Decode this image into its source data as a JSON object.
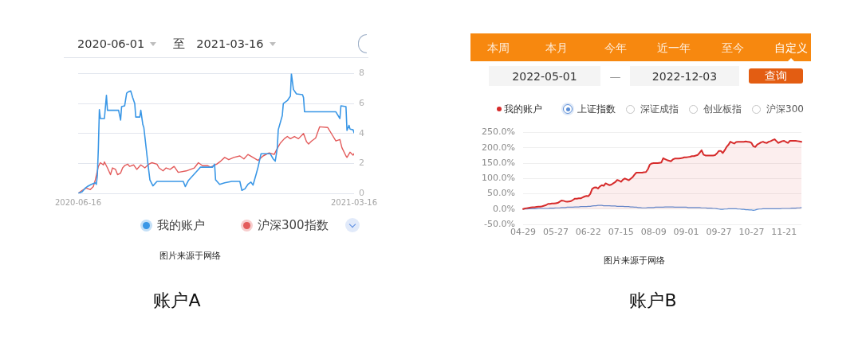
{
  "chart_data": [
    {
      "type": "line",
      "title": "账户A",
      "annotations": [
        "2020-06-01",
        "至",
        "2021-03-16",
        "图片来源于网络"
      ],
      "xlim": [
        "2020-06-16",
        "2021-03-16"
      ],
      "xticks": [
        "2020-06-16",
        "2021-03-16"
      ],
      "ylim": [
        0,
        8
      ],
      "yticks": [
        0,
        2,
        4,
        6,
        8
      ],
      "grid": "y",
      "legend": "bottom",
      "series": [
        {
          "name": "我的账户",
          "color": "#3a97e6",
          "x": [
            "2020-06-16",
            "2020-06-20",
            "2020-06-23",
            "2020-06-25",
            "2020-06-29",
            "2020-07-03",
            "2020-07-04",
            "2020-07-05",
            "2020-07-06",
            "2020-07-07",
            "2020-07-08",
            "2020-07-12",
            "2020-07-14",
            "2020-07-15",
            "2020-07-26",
            "2020-07-28",
            "2020-07-29",
            "2020-08-01",
            "2020-08-03",
            "2020-08-05",
            "2020-08-07",
            "2020-08-09",
            "2020-08-11",
            "2020-08-12",
            "2020-08-16",
            "2020-08-17",
            "2020-08-19",
            "2020-08-20",
            "2020-08-24",
            "2020-08-26",
            "2020-08-29",
            "2020-09-02",
            "2020-09-28",
            "2020-09-30",
            "2020-10-03",
            "2020-10-13",
            "2020-10-15",
            "2020-10-27",
            "2020-10-29",
            "2020-10-30",
            "2020-11-03",
            "2020-11-08",
            "2020-11-15",
            "2020-11-23",
            "2020-11-25",
            "2020-11-28",
            "2020-12-01",
            "2020-12-04",
            "2020-12-06",
            "2020-12-09",
            "2020-12-11",
            "2020-12-14",
            "2020-12-23",
            "2020-12-26",
            "2020-12-28",
            "2020-12-30",
            "2020-12-31",
            "2021-01-04",
            "2021-01-05",
            "2021-01-09",
            "2021-01-12",
            "2021-01-13",
            "2021-01-15",
            "2021-01-18",
            "2021-01-24",
            "2021-01-25",
            "2021-01-26",
            "2021-02-26",
            "2021-03-02",
            "2021-03-03",
            "2021-03-08",
            "2021-03-09",
            "2021-03-11",
            "2021-03-12",
            "2021-03-15",
            "2021-03-16"
          ],
          "values": [
            0,
            0.1,
            0.35,
            0.45,
            0.6,
            0.7,
            0.6,
            1.2,
            3.0,
            5.6,
            5.0,
            5.0,
            6.55,
            5.55,
            5.55,
            4.9,
            5.8,
            5.85,
            6.7,
            6.8,
            6.85,
            6.4,
            6.0,
            5.1,
            5.1,
            5.55,
            4.6,
            4.4,
            2.0,
            0.9,
            0.5,
            0.8,
            0.8,
            0.45,
            0.85,
            1.6,
            1.75,
            1.75,
            1.95,
            0.9,
            0.6,
            0.7,
            0.8,
            0.8,
            0.2,
            0.3,
            0.6,
            0.75,
            0.55,
            1.25,
            1.75,
            2.65,
            2.65,
            2.3,
            2.15,
            3.0,
            4.25,
            5.2,
            6.0,
            6.2,
            6.5,
            8.0,
            6.95,
            6.65,
            6.6,
            6.4,
            5.45,
            5.45,
            5.0,
            5.85,
            5.8,
            4.2,
            4.55,
            4.3,
            4.25,
            4.05
          ]
        },
        {
          "name": "沪深300指数",
          "color": "#e35b5b",
          "x": [
            "2020-06-16",
            "2020-06-20",
            "2020-06-24",
            "2020-06-28",
            "2020-07-01",
            "2020-07-03",
            "2020-07-06",
            "2020-07-08",
            "2020-07-11",
            "2020-07-12",
            "2020-07-15",
            "2020-07-18",
            "2020-07-20",
            "2020-07-23",
            "2020-07-25",
            "2020-07-28",
            "2020-07-30",
            "2020-08-01",
            "2020-08-04",
            "2020-08-06",
            "2020-08-10",
            "2020-08-13",
            "2020-08-17",
            "2020-08-21",
            "2020-08-25",
            "2020-08-28",
            "2020-09-02",
            "2020-09-04",
            "2020-09-08",
            "2020-09-11",
            "2020-09-15",
            "2020-09-19",
            "2020-09-23",
            "2020-10-01",
            "2020-10-09",
            "2020-10-13",
            "2020-10-17",
            "2020-10-22",
            "2020-10-25",
            "2020-10-31",
            "2020-11-04",
            "2020-11-08",
            "2020-11-12",
            "2020-11-17",
            "2020-11-23",
            "2020-11-27",
            "2020-12-01",
            "2020-12-06",
            "2020-12-11",
            "2020-12-16",
            "2020-12-22",
            "2020-12-27",
            "2020-12-30",
            "2021-01-02",
            "2021-01-06",
            "2021-01-09",
            "2021-01-12",
            "2021-01-16",
            "2021-01-20",
            "2021-01-25",
            "2021-01-28",
            "2021-01-30",
            "2021-02-02",
            "2021-02-06",
            "2021-02-10",
            "2021-02-18",
            "2021-02-22",
            "2021-02-26",
            "2021-03-02",
            "2021-03-04",
            "2021-03-08",
            "2021-03-09",
            "2021-03-12",
            "2021-03-15",
            "2021-03-16"
          ],
          "values": [
            0,
            0.2,
            0.35,
            0.25,
            0.45,
            0.9,
            1.8,
            2.05,
            1.9,
            2.1,
            1.7,
            1.25,
            1.7,
            1.6,
            1.25,
            1.35,
            1.7,
            1.85,
            1.95,
            1.8,
            1.9,
            1.6,
            1.9,
            1.7,
            1.95,
            2.05,
            1.95,
            1.7,
            1.5,
            1.7,
            1.6,
            1.8,
            1.4,
            1.5,
            1.7,
            2.05,
            1.85,
            1.85,
            1.75,
            1.95,
            2.15,
            2.4,
            2.25,
            2.4,
            2.5,
            2.3,
            2.6,
            2.4,
            2.2,
            2.5,
            2.7,
            2.6,
            3.0,
            3.35,
            3.65,
            3.8,
            3.65,
            3.8,
            3.65,
            4.0,
            3.45,
            3.3,
            3.5,
            3.7,
            4.45,
            4.4,
            3.95,
            3.5,
            3.6,
            3.05,
            2.5,
            2.4,
            2.75,
            2.55,
            2.65
          ]
        }
      ]
    },
    {
      "type": "line",
      "title": "账户B",
      "annotations": [
        "本周",
        "本月",
        "今年",
        "近一年",
        "至今",
        "自定义",
        "2022-05-01",
        "—",
        "2022-12-03",
        "查询",
        "深证成指",
        "创业板指",
        "沪深300",
        "图片来源于网络"
      ],
      "categories": [
        "04-29",
        null,
        null,
        null,
        null,
        null,
        null,
        null,
        null,
        null,
        null,
        null,
        null,
        null,
        null,
        null,
        null,
        "05-27",
        null,
        null,
        null,
        null,
        null,
        null,
        null,
        null,
        null,
        null,
        null,
        null,
        null,
        null,
        null,
        null,
        "06-22",
        null,
        null,
        null,
        null,
        null,
        null,
        null,
        null,
        null,
        null,
        null,
        null,
        null,
        null,
        null,
        null,
        "07-15",
        null,
        null,
        null,
        null,
        null,
        null,
        null,
        null,
        null,
        null,
        null,
        null,
        null,
        null,
        null,
        null,
        "08-09",
        null,
        null,
        null,
        null,
        null,
        null,
        null,
        null,
        null,
        null,
        null,
        null,
        null,
        null,
        null,
        null,
        "09-01",
        null,
        null,
        null,
        null,
        null,
        null,
        null,
        null,
        null,
        null,
        null,
        null,
        null,
        null,
        null,
        null,
        "09-27",
        null,
        null,
        null,
        null,
        null,
        null,
        null,
        null,
        null,
        null,
        null,
        null,
        null,
        null,
        null,
        null,
        "10-27",
        null,
        null,
        null,
        null,
        null,
        null,
        null,
        null,
        null,
        null,
        null,
        null,
        null,
        null,
        null,
        null,
        "11-21",
        null,
        null,
        null,
        null,
        null,
        null,
        null,
        null,
        null
      ],
      "ylim": [
        -50,
        250
      ],
      "yticks": [
        {
          "value": -50,
          "label": "-50.0%"
        },
        {
          "value": 0,
          "label": "0.0%"
        },
        {
          "value": 50,
          "label": "50.0%"
        },
        {
          "value": 100,
          "label": "100.0%"
        },
        {
          "value": 150,
          "label": "150.0%"
        },
        {
          "value": 200,
          "label": "200.0%"
        },
        {
          "value": 250,
          "label": "250.0%"
        }
      ],
      "grid": "y",
      "legend": "top",
      "series": [
        {
          "name": "我的账户",
          "type": "area",
          "color": "#d62b2b",
          "values": [
            0,
            2,
            3,
            4,
            5,
            6,
            6,
            7,
            8,
            8,
            9,
            11,
            13,
            17,
            17,
            18,
            18,
            19,
            20,
            24,
            28,
            27,
            25,
            24,
            25,
            26,
            30,
            34,
            34,
            35,
            35,
            38,
            41,
            43,
            42,
            50,
            66,
            70,
            71,
            67,
            74,
            78,
            76,
            84,
            81,
            78,
            80,
            84,
            88,
            95,
            93,
            89,
            96,
            100,
            97,
            94,
            99,
            104,
            112,
            119,
            119,
            119,
            119,
            120,
            121,
            130,
            145,
            149,
            150,
            150,
            150,
            151,
            152,
            166,
            163,
            160,
            158,
            156,
            162,
            165,
            165,
            165,
            166,
            167,
            169,
            169,
            170,
            171,
            173,
            173,
            175,
            177,
            184,
            192,
            178,
            175,
            175,
            175,
            175,
            175,
            176,
            182,
            190,
            190,
            183,
            192,
            203,
            210,
            220,
            217,
            214,
            219,
            220,
            220,
            220,
            220,
            221,
            220,
            219,
            216,
            205,
            203,
            211,
            214,
            218,
            220,
            217,
            216,
            220,
            222,
            225,
            228,
            222,
            216,
            219,
            222,
            223,
            219,
            216,
            223,
            223,
            223,
            223,
            222,
            221,
            220
          ]
        },
        {
          "name": "上证指数",
          "color": "#5b8ed6",
          "values": [
            0,
            0,
            0,
            1,
            1,
            1,
            1,
            1,
            2,
            2,
            2,
            2,
            2,
            2,
            3,
            3,
            3,
            4,
            4,
            4,
            5,
            5,
            5,
            6,
            6,
            6,
            6,
            7,
            7,
            7,
            8,
            8,
            8,
            8,
            9,
            9,
            10,
            11,
            11,
            12,
            12,
            12,
            11,
            11,
            11,
            11,
            10,
            10,
            10,
            9,
            9,
            9,
            9,
            8,
            8,
            8,
            7,
            7,
            6,
            6,
            5,
            5,
            4,
            4,
            4,
            5,
            5,
            5,
            5,
            6,
            6,
            6,
            6,
            6,
            7,
            7,
            7,
            7,
            7,
            6,
            6,
            6,
            6,
            6,
            6,
            6,
            5,
            5,
            5,
            5,
            5,
            5,
            5,
            4,
            4,
            4,
            3,
            3,
            3,
            2,
            2,
            1,
            0,
            -1,
            -1,
            0,
            0,
            1,
            1,
            1,
            1,
            1,
            0,
            0,
            -1,
            -1,
            -2,
            -2,
            -3,
            -3,
            -4,
            -3,
            -1,
            0,
            0,
            1,
            1,
            1,
            1,
            1,
            1,
            1,
            1,
            1,
            1,
            2,
            2,
            2,
            2,
            2,
            3,
            3,
            3,
            4,
            4,
            5
          ]
        }
      ]
    }
  ]
}
